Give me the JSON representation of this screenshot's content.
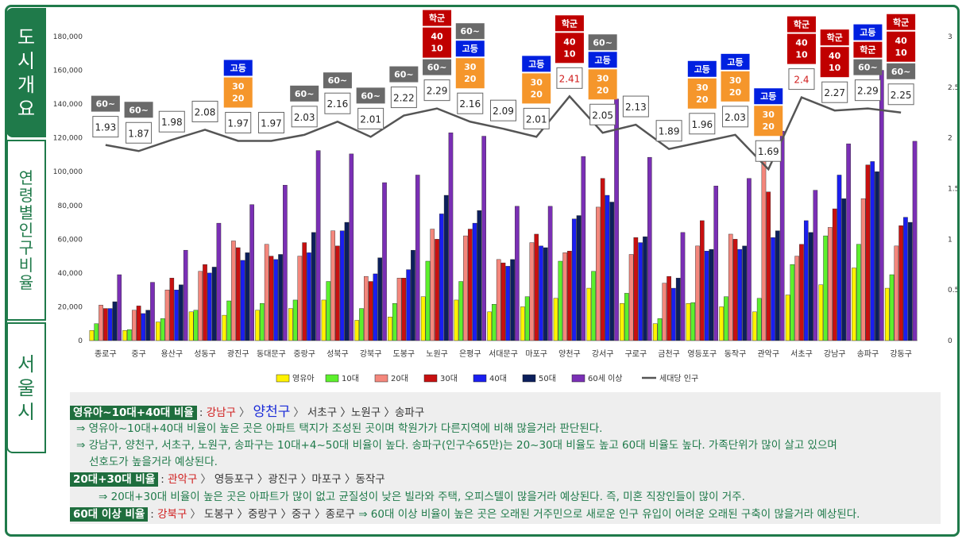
{
  "tabs": [
    {
      "label": "도시개요",
      "chars": [
        "도",
        "시",
        "개",
        "요"
      ]
    },
    {
      "label": "연령별인구비율",
      "chars": [
        "연",
        "령",
        "별",
        "인",
        "구",
        "비",
        "율"
      ]
    },
    {
      "label": "서울시",
      "chars": [
        "서",
        "울",
        "시"
      ]
    }
  ],
  "colors": {
    "infant": "#fff200",
    "teen": "#5cf02c",
    "twenties": "#f4877c",
    "thirties": "#c81010",
    "forties": "#1a1ef0",
    "fifties": "#0c1f5c",
    "sixties": "#7a2fb5",
    "household": "#555555",
    "tag_orange": "#f5962b",
    "tag_red": "#c00000",
    "tag_blue": "#0020e0",
    "tag_gray": "#6a6a6a",
    "frame_green": "#1f7a4a"
  },
  "chart_data": {
    "type": "bar",
    "categories": [
      "종로구",
      "중구",
      "용산구",
      "성동구",
      "광진구",
      "동대문구",
      "중랑구",
      "성북구",
      "강북구",
      "도봉구",
      "노원구",
      "은평구",
      "서대문구",
      "마포구",
      "양천구",
      "강서구",
      "구로구",
      "금천구",
      "영등포구",
      "동작구",
      "관악구",
      "서초구",
      "강남구",
      "송파구",
      "강동구"
    ],
    "series": [
      {
        "name": "영유아",
        "values": [
          6000,
          6000,
          11000,
          17000,
          15000,
          18000,
          19000,
          24000,
          12000,
          14000,
          26000,
          24000,
          17000,
          20000,
          25000,
          31000,
          22000,
          10000,
          22000,
          20000,
          17000,
          27000,
          33000,
          43000,
          31000
        ]
      },
      {
        "name": "10대",
        "values": [
          10000,
          6500,
          13000,
          18000,
          23500,
          22000,
          24000,
          35000,
          19000,
          22000,
          47000,
          35000,
          21500,
          26000,
          47000,
          41000,
          28000,
          13000,
          22500,
          26000,
          25000,
          45000,
          62000,
          57000,
          39000
        ]
      },
      {
        "name": "20대",
        "values": [
          21000,
          18000,
          30000,
          41000,
          59000,
          57000,
          50000,
          65000,
          38000,
          37000,
          66000,
          62000,
          48000,
          58000,
          52000,
          79000,
          51000,
          34000,
          56000,
          63000,
          107000,
          50000,
          67000,
          84000,
          56000
        ]
      },
      {
        "name": "30대",
        "values": [
          19000,
          20500,
          37000,
          45000,
          55000,
          50000,
          58000,
          56000,
          35000,
          37000,
          60000,
          66000,
          46000,
          63000,
          53000,
          96000,
          61000,
          38000,
          71000,
          60000,
          88000,
          57000,
          78000,
          104000,
          68000
        ]
      },
      {
        "name": "40대",
        "values": [
          19000,
          16000,
          30000,
          40000,
          47500,
          48000,
          52000,
          65000,
          39500,
          42000,
          75000,
          69500,
          44000,
          56000,
          72000,
          86000,
          58000,
          31000,
          53000,
          54000,
          61000,
          71000,
          98000,
          106000,
          73000
        ]
      },
      {
        "name": "50대",
        "values": [
          23000,
          18000,
          33000,
          43500,
          52000,
          51000,
          64000,
          70000,
          49000,
          53500,
          86000,
          77000,
          48000,
          55000,
          74000,
          82000,
          61500,
          37000,
          54000,
          56000,
          65000,
          64000,
          84000,
          100000,
          70000
        ]
      },
      {
        "name": "60세 이상",
        "values": [
          39000,
          34500,
          53500,
          69500,
          80500,
          92000,
          112500,
          110500,
          93500,
          98000,
          123000,
          121000,
          79500,
          79500,
          109000,
          143000,
          108500,
          64000,
          91500,
          96000,
          124000,
          89000,
          116500,
          160000,
          118000
        ]
      }
    ],
    "line": {
      "name": "세대당 인구",
      "values": [
        1.93,
        1.87,
        1.98,
        2.08,
        1.97,
        1.97,
        2.03,
        2.16,
        2.01,
        2.22,
        2.29,
        2.16,
        2.09,
        2.01,
        2.41,
        2.05,
        2.13,
        1.89,
        1.96,
        2.03,
        1.69,
        2.4,
        2.27,
        2.29,
        2.25
      ]
    },
    "line_labels": [
      "1.93",
      "1.87",
      "1.98",
      "2.08",
      "1.97",
      "1.97",
      "2.03",
      "2.16",
      "2.01",
      "2.22",
      "2.29",
      "2.16",
      "2.09",
      "2.01",
      "2.41",
      "2.05",
      "2.13",
      "1.89",
      "1.96",
      "2.03",
      "1.69",
      "2.4",
      "2.27",
      "2.29",
      "2.25"
    ],
    "line_label_red": [
      14,
      21
    ],
    "ylim": [
      0,
      180000
    ],
    "y_ticks": [
      "0",
      "20,000",
      "40,000",
      "60,000",
      "80,000",
      "100,000",
      "120,000",
      "140,000",
      "160,000",
      "180,000"
    ],
    "y2lim": [
      0,
      3
    ],
    "y2_ticks": [
      "0",
      "0.5",
      "1",
      "1.5",
      "2",
      "2.5",
      "3"
    ],
    "tags": [
      [
        {
          "t": "gray",
          "lines": [
            "60~"
          ]
        }
      ],
      [
        {
          "t": "gray",
          "lines": [
            "60~"
          ]
        }
      ],
      [],
      [],
      [
        {
          "t": "orange",
          "lines": [
            "30",
            "20"
          ]
        },
        {
          "t": "blue",
          "lines": [
            "고등"
          ]
        }
      ],
      [],
      [
        {
          "t": "gray",
          "lines": [
            "60~"
          ]
        }
      ],
      [
        {
          "t": "gray",
          "lines": [
            "60~"
          ]
        }
      ],
      [
        {
          "t": "gray",
          "lines": [
            "60~"
          ]
        }
      ],
      [
        {
          "t": "gray",
          "lines": [
            "60~"
          ]
        }
      ],
      [
        {
          "t": "gray",
          "lines": [
            "60~"
          ]
        },
        {
          "t": "red",
          "lines": [
            "40",
            "10"
          ]
        },
        {
          "t": "red",
          "lines": [
            "학군"
          ]
        }
      ],
      [
        {
          "t": "orange",
          "lines": [
            "30",
            "20"
          ]
        },
        {
          "t": "blue",
          "lines": [
            "고등"
          ]
        },
        {
          "t": "gray",
          "lines": [
            "60~"
          ]
        }
      ],
      [],
      [
        {
          "t": "orange",
          "lines": [
            "30",
            "20"
          ]
        },
        {
          "t": "blue",
          "lines": [
            "고등"
          ]
        }
      ],
      [
        {
          "t": "red",
          "lines": [
            "40",
            "10"
          ]
        },
        {
          "t": "red",
          "lines": [
            "학군"
          ]
        }
      ],
      [
        {
          "t": "orange",
          "lines": [
            "30",
            "20"
          ]
        },
        {
          "t": "blue",
          "lines": [
            "고등"
          ]
        },
        {
          "t": "gray",
          "lines": [
            "60~"
          ]
        }
      ],
      [],
      [],
      [
        {
          "t": "orange",
          "lines": [
            "30",
            "20"
          ]
        },
        {
          "t": "blue",
          "lines": [
            "고등"
          ]
        }
      ],
      [
        {
          "t": "orange",
          "lines": [
            "30",
            "20"
          ]
        },
        {
          "t": "blue",
          "lines": [
            "고등"
          ]
        }
      ],
      [
        {
          "t": "orange",
          "lines": [
            "30",
            "20"
          ]
        },
        {
          "t": "blue",
          "lines": [
            "고등"
          ]
        }
      ],
      [
        {
          "t": "red",
          "lines": [
            "40",
            "10"
          ]
        },
        {
          "t": "red",
          "lines": [
            "학군"
          ]
        }
      ],
      [
        {
          "t": "red",
          "lines": [
            "40",
            "10"
          ]
        },
        {
          "t": "red",
          "lines": [
            "학군"
          ]
        }
      ],
      [
        {
          "t": "gray",
          "lines": [
            "60~"
          ]
        },
        {
          "t": "red",
          "lines": [
            "학군"
          ]
        },
        {
          "t": "blue",
          "lines": [
            "고등"
          ]
        }
      ],
      [
        {
          "t": "gray",
          "lines": [
            "60~"
          ]
        },
        {
          "t": "red",
          "lines": [
            "40",
            "10"
          ]
        },
        {
          "t": "red",
          "lines": [
            "학군"
          ]
        }
      ]
    ]
  },
  "notes": {
    "l1": {
      "label": "영유아~10대+40대 비율",
      "c1": "강남구",
      "c2": "양천구",
      "rest": "서초구 〉노원구 〉송파구"
    },
    "l2": "⇒ 영유아~10대+40대 비율이 높은 곳은 아파트 택지가 조성된 곳이며 학원가가 다른지역에 비해 많을거라 판단된다.",
    "l3": "⇒ 강남구, 양천구, 서초구, 노원구, 송파구는 10대+4~50대 비율이 높다. 송파구(인구수65만)는 20~30대 비율도 높고 60대 비율도 높다.  가족단위가 많이 살고 있으며",
    "l4": "선호도가 높을거라 예상된다.",
    "l5": {
      "label": "20대+30대 비율",
      "c1": "관악구",
      "rest": "영등포구 〉광진구 〉마포구 〉동작구"
    },
    "l6": "⇒ 20대+30대 비율이 높은 곳은 아파트가 많이 없고 균질성이 낮은 빌라와 주택, 오피스텔이 많을거라 예상된다. 즉, 미혼 직장인들이 많이 거주.",
    "l7": {
      "label": "60대 이상 비율",
      "c1": "강북구",
      "rest": "도봉구 〉중랑구 〉중구 〉종로구",
      "tail": "⇒ 60대 이상 비율이 높은 곳은 오래된 거주민으로 새로운 인구 유입이 어려운 오래된 구축이 많을거라 예상된다."
    }
  }
}
